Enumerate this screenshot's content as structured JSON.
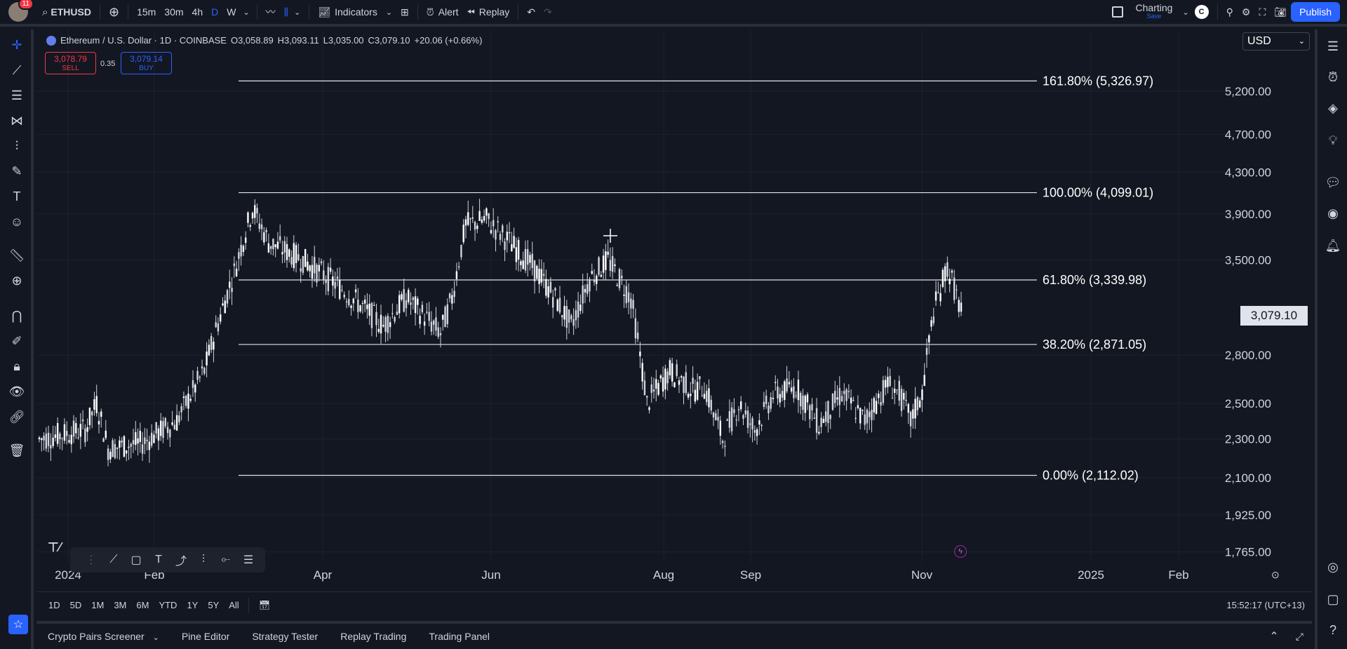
{
  "topbar": {
    "notifications": "11",
    "symbol": "ETHUSD",
    "intervals": [
      "15m",
      "30m",
      "4h",
      "D",
      "W"
    ],
    "active_interval": "D",
    "indicators_label": "Indicators",
    "alert_label": "Alert",
    "replay_label": "Replay",
    "layout_name": "Charting",
    "layout_sub": "Save",
    "user_initial": "C",
    "publish_label": "Publish"
  },
  "legend": {
    "title": "Ethereum / U.S. Dollar · 1D · COINBASE",
    "open": "O3,058.89",
    "high": "H3,093.11",
    "low": "L3,035.00",
    "close": "C3,079.10",
    "change": "+20.06 (+0.66%)"
  },
  "trade": {
    "sell_price": "3,078.79",
    "sell_label": "SELL",
    "spread": "0.35",
    "buy_price": "3,079.14",
    "buy_label": "BUY"
  },
  "currency": "USD",
  "last_price": "3,079.10",
  "price_axis": [
    "5,200.00",
    "4,700.00",
    "4,300.00",
    "3,900.00",
    "3,500.00",
    "2,800.00",
    "2,500.00",
    "2,300.00",
    "2,100.00",
    "1,925.00",
    "1,765.00"
  ],
  "time_axis": [
    "2024",
    "Feb",
    "Apr",
    "Jun",
    "Aug",
    "Sep",
    "Nov",
    "2025",
    "Feb"
  ],
  "fib_levels": [
    {
      "label": "161.80% (5,326.97)",
      "price": 5326.97
    },
    {
      "label": "100.00% (4,099.01)",
      "price": 4099.01
    },
    {
      "label": "61.80% (3,339.98)",
      "price": 3339.98
    },
    {
      "label": "38.20% (2,871.05)",
      "price": 2871.05
    },
    {
      "label": "0.00% (2,112.02)",
      "price": 2112.02
    }
  ],
  "ranges": [
    "1D",
    "5D",
    "1M",
    "3M",
    "6M",
    "YTD",
    "1Y",
    "5Y",
    "All"
  ],
  "clock": "15:52:17 (UTC+13)",
  "footer_tabs": [
    "Crypto Pairs Screener",
    "Pine Editor",
    "Strategy Tester",
    "Replay Trading",
    "Trading Panel"
  ],
  "colors": {
    "background": "#131722",
    "accent": "#2962ff",
    "sell": "#f23645",
    "candle": "#d1d4dc"
  }
}
